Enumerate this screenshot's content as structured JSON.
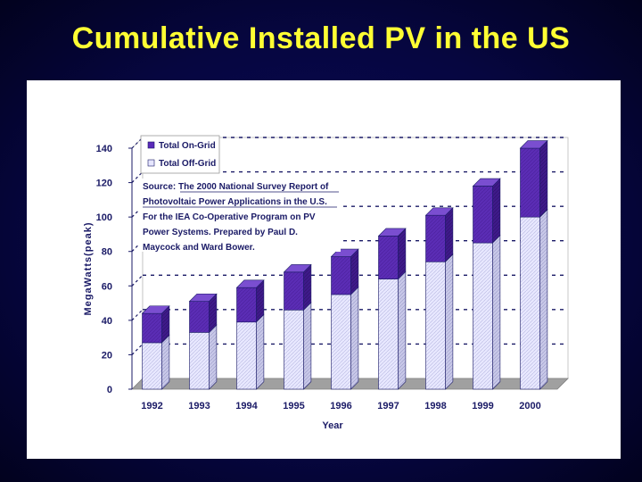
{
  "slide": {
    "title": "Cumulative Installed PV in the US"
  },
  "chart_data": {
    "type": "bar",
    "stacked": true,
    "three_d": true,
    "categories": [
      "1992",
      "1993",
      "1994",
      "1995",
      "1996",
      "1997",
      "1998",
      "1999",
      "2000"
    ],
    "series": [
      {
        "name": "Total Off-Grid",
        "color": "#e6e6ff",
        "values": [
          27,
          33,
          39,
          46,
          55,
          64,
          74,
          85,
          100
        ]
      },
      {
        "name": "Total On-Grid",
        "color": "#5a2ab8",
        "values": [
          17,
          18,
          20,
          22,
          22,
          25,
          27,
          33,
          40
        ]
      }
    ],
    "xlabel": "Year",
    "ylabel": "MegaWatts(peak)",
    "ylim": [
      0,
      140
    ],
    "yticks": [
      "0",
      "20",
      "40",
      "60",
      "80",
      "100",
      "120",
      "140"
    ],
    "grid": true,
    "legend_position": "top-left",
    "note": {
      "lines": [
        "Source: The 2000 National Survey Report of",
        "Photovoltaic Power Applications in the U.S.",
        "For the IEA Co-Operative Program on PV",
        "Power Systems. Prepared by Paul D.",
        "Maycock and Ward Bower."
      ]
    }
  }
}
